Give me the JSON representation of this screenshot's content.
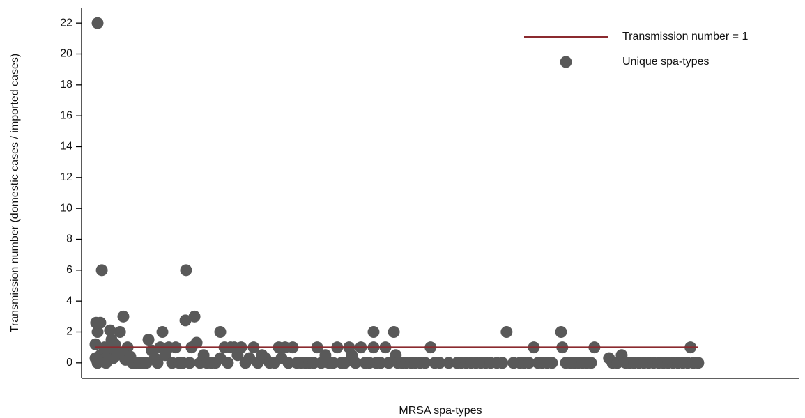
{
  "chart_data": {
    "type": "scatter",
    "y_label": "Transmission number (domestic cases / imported cases)",
    "x_label": "MRSA spa-types",
    "xlim": [
      0,
      340
    ],
    "ylim": [
      -1,
      23
    ],
    "yticks": [
      0,
      2,
      4,
      6,
      8,
      10,
      12,
      14,
      16,
      18,
      20,
      22
    ],
    "legend": "top-right",
    "series": [
      {
        "name": "Transmission number = 1",
        "type": "line",
        "color": "#8b2a2f",
        "x": [
          6.6,
          292.1
        ],
        "values": [
          1,
          1
        ]
      },
      {
        "name": "Unique spa-types",
        "type": "scatter",
        "color": "#595959",
        "x": [
          6.6,
          6.6,
          7.6,
          7.6,
          7.6,
          6.9,
          8.9,
          9,
          9.6,
          10.2,
          10.9,
          11.6,
          12.5,
          13.5,
          14.2,
          14.9,
          15.8,
          16.8,
          18.2,
          19.1,
          19.8,
          20.8,
          21.8,
          23.1,
          24.1,
          25.7,
          27.4,
          29,
          30.7,
          31.7,
          33.3,
          34.7,
          36,
          37.3,
          38.3,
          39.6,
          41.3,
          42.9,
          44.6,
          46.2,
          47.9,
          49.2,
          49.5,
          51.2,
          52.1,
          53.5,
          54.5,
          56.1,
          57.8,
          59.4,
          61.4,
          63.4,
          65.7,
          65.7,
          67.7,
          69.3,
          70.6,
          72.3,
          73.9,
          75.6,
          77.6,
          79.5,
          81.5,
          83.5,
          85.5,
          87.1,
          89.1,
          91.4,
          93.4,
          94.7,
          96.4,
          98,
          100,
          102,
          104,
          106,
          107.9,
          109.9,
          111.6,
          113.5,
          115.5,
          117.2,
          119.1,
          121.1,
          123.1,
          124.8,
          126.7,
          128,
          129.7,
          132.3,
          134.3,
          136.3,
          138.3,
          138.3,
          139.6,
          141.6,
          143.9,
          145.5,
          147.9,
          148.8,
          149.8,
          151.8,
          153.8,
          156.1,
          158.1,
          160.4,
          162.7,
          165.3,
          167.3,
          169.6,
          173.9,
          177.9,
          179.9,
          182.2,
          184.5,
          186.8,
          189.1,
          191.4,
          193.7,
          196.7,
          199.3,
          201.3,
          204.6,
          207.6,
          209.6,
          211.9,
          214.2,
          216.2,
          218.2,
          220.5,
          222.8,
          227.1,
          227.7,
          229.4,
          231.4,
          233.3,
          235.3,
          237.3,
          239.3,
          241.3,
          242.9,
          249.8,
          251.5,
          253.8,
          255.8,
          257.8,
          259.7,
          261.7,
          264,
          266.3,
          268.6,
          270.9,
          273.3,
          275.6,
          277.9,
          280.2,
          282.5,
          284.8,
          287.1,
          288.4,
          289.8,
          292.1
        ],
        "values": [
          1.2,
          0.3,
          22,
          2,
          0,
          2.6,
          2.6,
          0.5,
          6,
          0.2,
          1,
          0,
          0.8,
          2.1,
          1.5,
          0.3,
          1.2,
          0.5,
          2,
          0.6,
          3,
          0.2,
          1,
          0.4,
          0,
          0,
          0,
          0,
          0,
          1.5,
          0.8,
          0.3,
          0,
          1,
          2,
          0.5,
          1,
          0,
          1,
          0,
          0,
          2.75,
          6,
          0,
          1,
          3,
          1.3,
          0,
          0.5,
          0,
          0,
          0,
          2,
          0.3,
          1,
          0,
          1,
          1,
          0.5,
          1,
          0,
          0.3,
          1,
          0,
          0.5,
          0.3,
          0,
          0,
          1,
          0.3,
          1,
          0,
          1,
          0,
          0,
          0,
          0,
          0,
          1,
          0,
          0.5,
          0,
          0,
          1,
          0,
          0,
          1,
          0.5,
          0,
          1,
          0,
          0,
          2,
          1,
          0,
          0,
          1,
          0,
          2,
          0.5,
          0,
          0,
          0,
          0,
          0,
          0,
          0,
          1,
          0,
          0,
          0,
          0,
          0,
          0,
          0,
          0,
          0,
          0,
          0,
          0,
          0,
          2,
          0,
          0,
          0,
          0,
          1,
          0,
          0,
          0,
          0,
          2,
          1,
          0,
          0,
          0,
          0,
          0,
          0,
          0,
          1,
          0.3,
          0,
          0,
          0.5,
          0,
          0,
          0,
          0,
          0,
          0,
          0,
          0,
          0,
          0,
          0,
          0,
          0,
          0,
          1,
          0,
          0
        ]
      }
    ]
  }
}
